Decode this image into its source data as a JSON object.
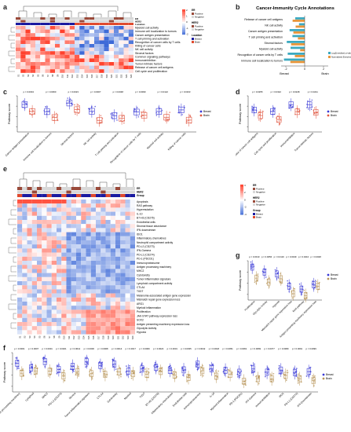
{
  "panels": {
    "a": {
      "letter": "a"
    },
    "b": {
      "letter": "b",
      "title": "Cancer-Immunity Cycle Annotations"
    },
    "c": {
      "letter": "c"
    },
    "d": {
      "letter": "d"
    },
    "e": {
      "letter": "e"
    },
    "f": {
      "letter": "f"
    },
    "g": {
      "letter": "g"
    }
  },
  "heatmap_a": {
    "track_labels": [
      "ER",
      "HER2",
      "Location"
    ],
    "rows": [
      "Myeloid cell activity",
      "Immune cell localization to tumors",
      "Cancer antigen presentation",
      "T cell priming and activation",
      "Recognition of cancer cells by T cells",
      "Killing of cancer cells",
      "NK cell activity",
      "Stromal factors",
      "Common signaling pathways",
      "Immunoinhibition",
      "Tumor-intrinsic factors",
      "Release of cancer cell antigens",
      "Cell cycle and proliferation"
    ],
    "legend": {
      "er_title": "ER",
      "her2_title": "HER2",
      "loc_title": "Location",
      "pos": "Positive",
      "neg": "Negative",
      "breast": "Breast",
      "brain": "Brain",
      "ticks": [
        "2",
        "1",
        "0",
        "-1",
        "-2"
      ]
    }
  },
  "chart_b": {
    "categories": [
      "Release of cancer cell antigens",
      "NK cell activity",
      "Cancer antigen presentation",
      "T cell priming and activation",
      "Stromal factors",
      "Myeloid cell activity",
      "Recognition of cancer cells by T cells",
      "Immune cell localization to tumors"
    ],
    "xlabels": {
      "left": "Breast",
      "right": "Brain"
    },
    "ticks": [
      "-2",
      "0",
      "2"
    ],
    "legend": [
      "Log2(median) p-value",
      "Normalized Enrichment Score"
    ]
  },
  "chart_c": {
    "ylabel": "Pathway score",
    "categories": [
      "Cancer antigen presentation",
      "Immune cell localization to tumors",
      "Stromal factors",
      "NK cell activity",
      "T cell priming and activation",
      "Recognition of cancer cells by T cells",
      "Myeloid cell activity",
      "Killing of cancer cells"
    ],
    "pvals": [
      "p = 0.0004",
      "p = 0.0060",
      "p = 0.0023",
      "p = 0.0007",
      "p = 0.0048",
      "p = 0.0099",
      "p = 0.0122",
      "p = 0.0163"
    ],
    "legend": [
      "Breast",
      "Brain"
    ]
  },
  "chart_d": {
    "ylabel": "Pathway score",
    "categories": [
      "Release of cancer cell antigens",
      "Cell cycle and proliferation",
      "Immunoinhibition",
      "Tumor-intrinsic factors"
    ],
    "pvals": [
      "p = 0.0255",
      "p = 0.0322",
      "p = 0.0248",
      "p = 0.0211"
    ],
    "legend": [
      "Breast",
      "Brain"
    ]
  },
  "heatmap_e": {
    "track_labels": [
      "ER",
      "HER2",
      "Group"
    ],
    "rows": [
      "Apoptosis",
      "RAS pathway",
      "Hypermutation",
      "IL-10",
      "B7-H3 (CD276)",
      "Endothelial cells",
      "Stromal tissue abundance",
      "IFN downstream",
      "IDO1",
      "Inflammatory chemokines",
      "Neutrophil compartment activity",
      "PD-L2 (CD273)",
      "IFN-Gamma",
      "PD-L1 (CD274)",
      "PD-1 (PDCD1)",
      "Immunoproteasome",
      "Antigen processing machinery",
      "MHC2",
      "Cytotoxicity",
      "Tumor inflammation signature",
      "Lymphoid compartment activity",
      "CTLA4",
      "TIGIT",
      "Melanoma-associated antigen gene expression",
      "Mismatch repair gene expression loss",
      "ARG1",
      "Myeloid inflammation",
      "Proliferation",
      "JAK-STAT pathway expression loss",
      "SOX2",
      "Antigen presenting machinery expression loss",
      "Glycolytic Activity",
      "Hypoxia"
    ],
    "legend": {
      "er_title": "ER",
      "her2_title": "HER2",
      "group_title": "Group",
      "pos": "Positive",
      "neg": "Negative",
      "breast": "Breast",
      "brain": "Brain",
      "ticks": [
        "4",
        "2",
        "0",
        "-2",
        "-4"
      ]
    }
  },
  "chart_g": {
    "ylabel": "Pathway score",
    "categories": [
      "Proliferation",
      "Glycolytic Activity",
      "Hypoxia",
      "Mismatch repair gene expression loss",
      "RAS pathway",
      "Antigen presenting machinery expression loss"
    ],
    "pvals": [
      "p = 0.0010",
      "p = 0.0056",
      "p = 0.0119",
      "p = 0.0049",
      "p = 0.0210",
      "p = 0.0028"
    ],
    "legend": [
      "Breast",
      "Brain"
    ]
  },
  "chart_f": {
    "ylabel": "Pathway score",
    "categories": [
      "Antigen processing machinery",
      "Lymphoid",
      "MHC2",
      "PD-L2 (CD273)",
      "Stroma",
      "Tumor inflammation signature",
      "CTLA4",
      "Cytotoxicity",
      "Myeloid",
      "TIGIT",
      "B7-H3 (CD276)",
      "Inflammatory chemokines",
      "Endothelial cells",
      "Immunoproteasome",
      "IL-10",
      "Myeloid inflammation",
      "PD-1 (PDCD1)",
      "IFN Gamma",
      "Immunoinhibition",
      "IDO1",
      "PD-L1 (CD274)",
      "IFN Downstream"
    ],
    "pvals": [
      "p = 0.0001",
      "p = 0.0007",
      "p = 0.0001",
      "p = 0.0021",
      "p = 0.0012",
      "p = 0.0006",
      "p = 0.0008",
      "p = 0.0014",
      "p = 0.0017",
      "p = 0.0009",
      "p = 0.0024",
      "p = 0.0031",
      "p = 0.0035",
      "p = 0.0042",
      "p = 0.0018",
      "p = 0.0051",
      "p = 0.0061",
      "p = 0.0069",
      "p = 0.0077",
      "p = 0.0089",
      "p = 0.0091",
      "p = 0.0099"
    ],
    "legend": [
      "Breast",
      "Brain"
    ]
  },
  "colors": {
    "breast": "#3a3ad6",
    "brain": "#b8955a",
    "brain_red": "#e0543e",
    "er_pos": "#9a4a3a",
    "er_neg": "#d8d8d8",
    "teal": "#3ca9c0",
    "orange": "#e8963a",
    "loc_breast": "#1a1aa0",
    "loc_brain": "#e04a2e"
  }
}
